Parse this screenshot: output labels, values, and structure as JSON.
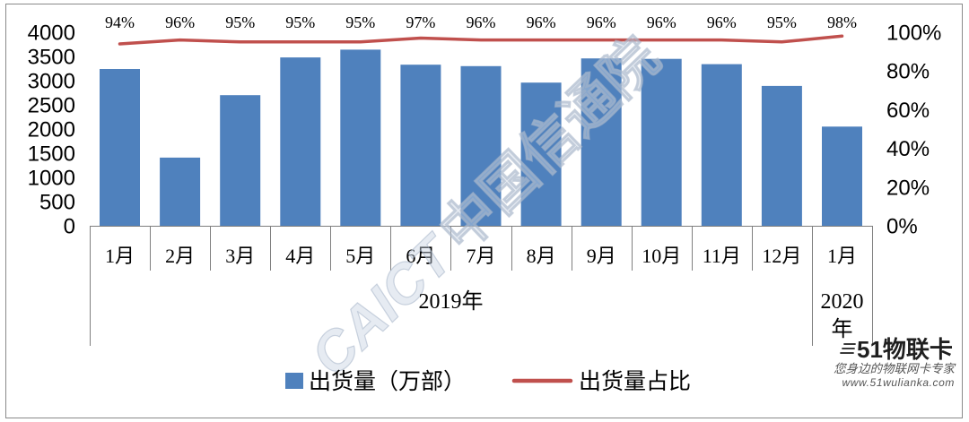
{
  "chart_data": {
    "type": "bar",
    "categories": [
      "1月",
      "2月",
      "3月",
      "4月",
      "5月",
      "6月",
      "7月",
      "8月",
      "9月",
      "10月",
      "11月",
      "12月",
      "1月"
    ],
    "category_groups": [
      {
        "label": "2019年",
        "first": 0,
        "last": 11
      },
      {
        "label": "2020年",
        "first": 12,
        "last": 12
      }
    ],
    "series": [
      {
        "name": "出货量（万部）",
        "type": "bar",
        "axis": "left",
        "color": "#4F81BD",
        "values": [
          3240,
          1410,
          2700,
          3480,
          3640,
          3330,
          3300,
          2960,
          3460,
          3450,
          3340,
          2890,
          2050
        ]
      },
      {
        "name": "出货量占比",
        "type": "line",
        "axis": "right",
        "color": "#C0504D",
        "values": [
          94,
          96,
          95,
          95,
          95,
          97,
          96,
          96,
          96,
          96,
          96,
          95,
          98
        ],
        "data_labels": [
          "94%",
          "96%",
          "95%",
          "95%",
          "95%",
          "97%",
          "96%",
          "96%",
          "96%",
          "96%",
          "96%",
          "95%",
          "98%"
        ]
      }
    ],
    "y_axis": {
      "lim": [
        0,
        4000
      ],
      "ticks": [
        "0",
        "500",
        "1000",
        "1500",
        "2000",
        "2500",
        "3000",
        "3500",
        "4000"
      ]
    },
    "y2_axis": {
      "lim": [
        0,
        100
      ],
      "ticks": [
        "0%",
        "20%",
        "40%",
        "60%",
        "80%",
        "100%"
      ]
    },
    "grid": false,
    "legend": {
      "position": "bottom"
    }
  },
  "watermarks": {
    "caict_en": "CAICT",
    "caict_cn": "中国信通院",
    "logo": "51物联卡",
    "slogan": "您身边的物联网卡专家",
    "url": "www.51wulianka.com"
  }
}
